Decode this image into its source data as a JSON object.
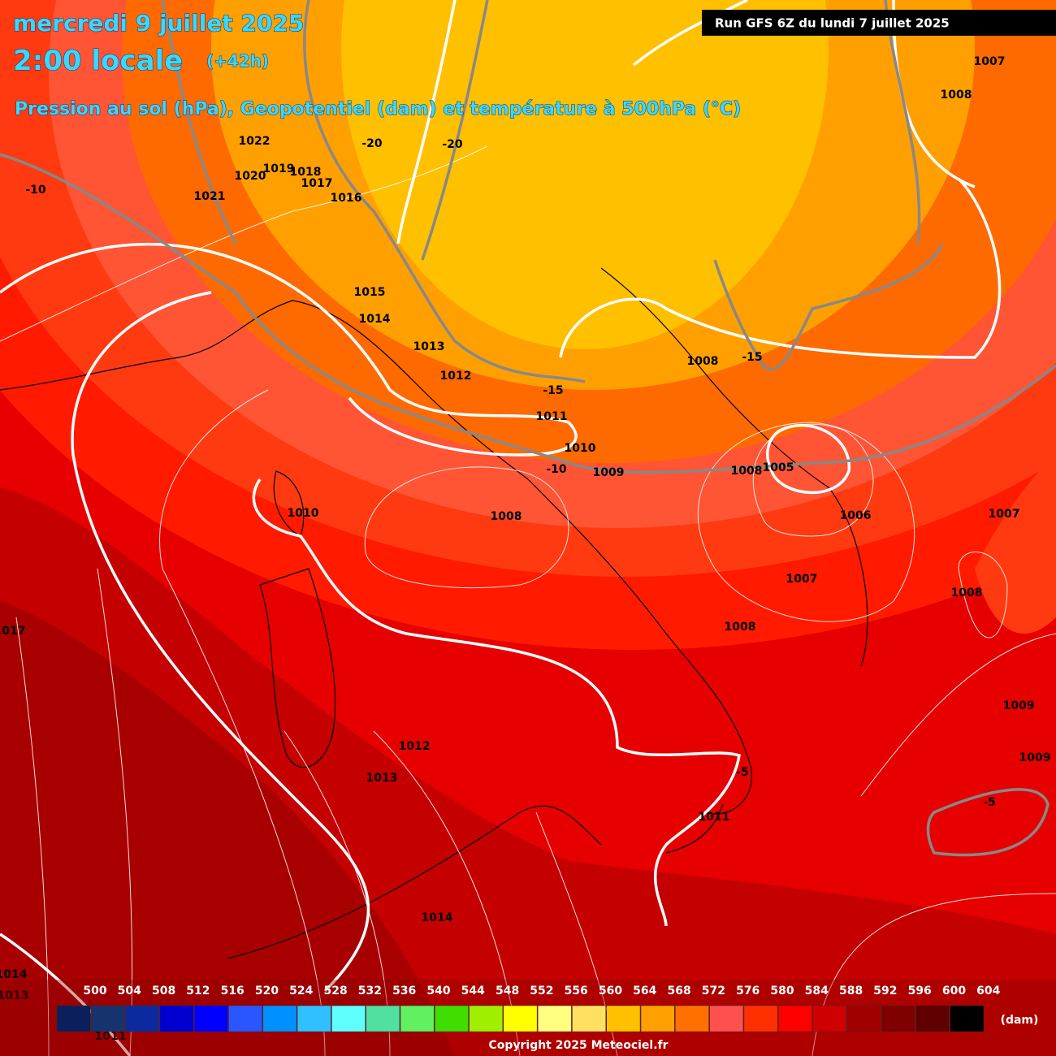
{
  "header": {
    "date": "mercredi 9 juillet 2025",
    "time": "2:00 locale",
    "offset": "(+42h)",
    "subtitle": "Pression au sol (hPa), Geopotentiel (dam) et température à 500hPa (°C)",
    "run": "Run GFS 6Z du lundi 7 juillet 2025"
  },
  "map": {
    "pressure_labels": [
      "1007",
      "1008",
      "1022",
      "1020",
      "1019",
      "1018",
      "1017",
      "1016",
      "1021",
      "1015",
      "1014",
      "1013",
      "1012",
      "1011",
      "1010",
      "1009",
      "1008",
      "1008",
      "1005",
      "1006",
      "1007",
      "1010",
      "1008",
      "1007",
      "1008",
      "1008",
      "1017",
      "1009",
      "1009",
      "1012",
      "1013",
      "1011",
      "1014",
      "1014",
      "1013",
      "1011"
    ],
    "temperature_labels": [
      "-20",
      "-20",
      "-10",
      "-15",
      "-15",
      "-10",
      "-5",
      "-5"
    ]
  },
  "legend": {
    "values": [
      500,
      504,
      508,
      512,
      516,
      520,
      524,
      528,
      532,
      536,
      540,
      544,
      548,
      552,
      556,
      560,
      564,
      568,
      572,
      576,
      580,
      584,
      588,
      592,
      596,
      600,
      604
    ],
    "colors": [
      "#0a1f5c",
      "#16336e",
      "#0b2aa0",
      "#0000d0",
      "#0000ff",
      "#2a55ff",
      "#0090ff",
      "#30c0ff",
      "#60ffff",
      "#50e0a0",
      "#60f060",
      "#40dd00",
      "#a0ef00",
      "#ffff00",
      "#ffff80",
      "#ffe060",
      "#ffc000",
      "#ffa000",
      "#ff7000",
      "#ff5050",
      "#ff3000",
      "#ff0000",
      "#d00000",
      "#a00000",
      "#800000",
      "#600000",
      "#000000"
    ],
    "unit": "(dam)"
  },
  "footer": {
    "copyright": "Copyright 2025 Meteociel.fr"
  }
}
